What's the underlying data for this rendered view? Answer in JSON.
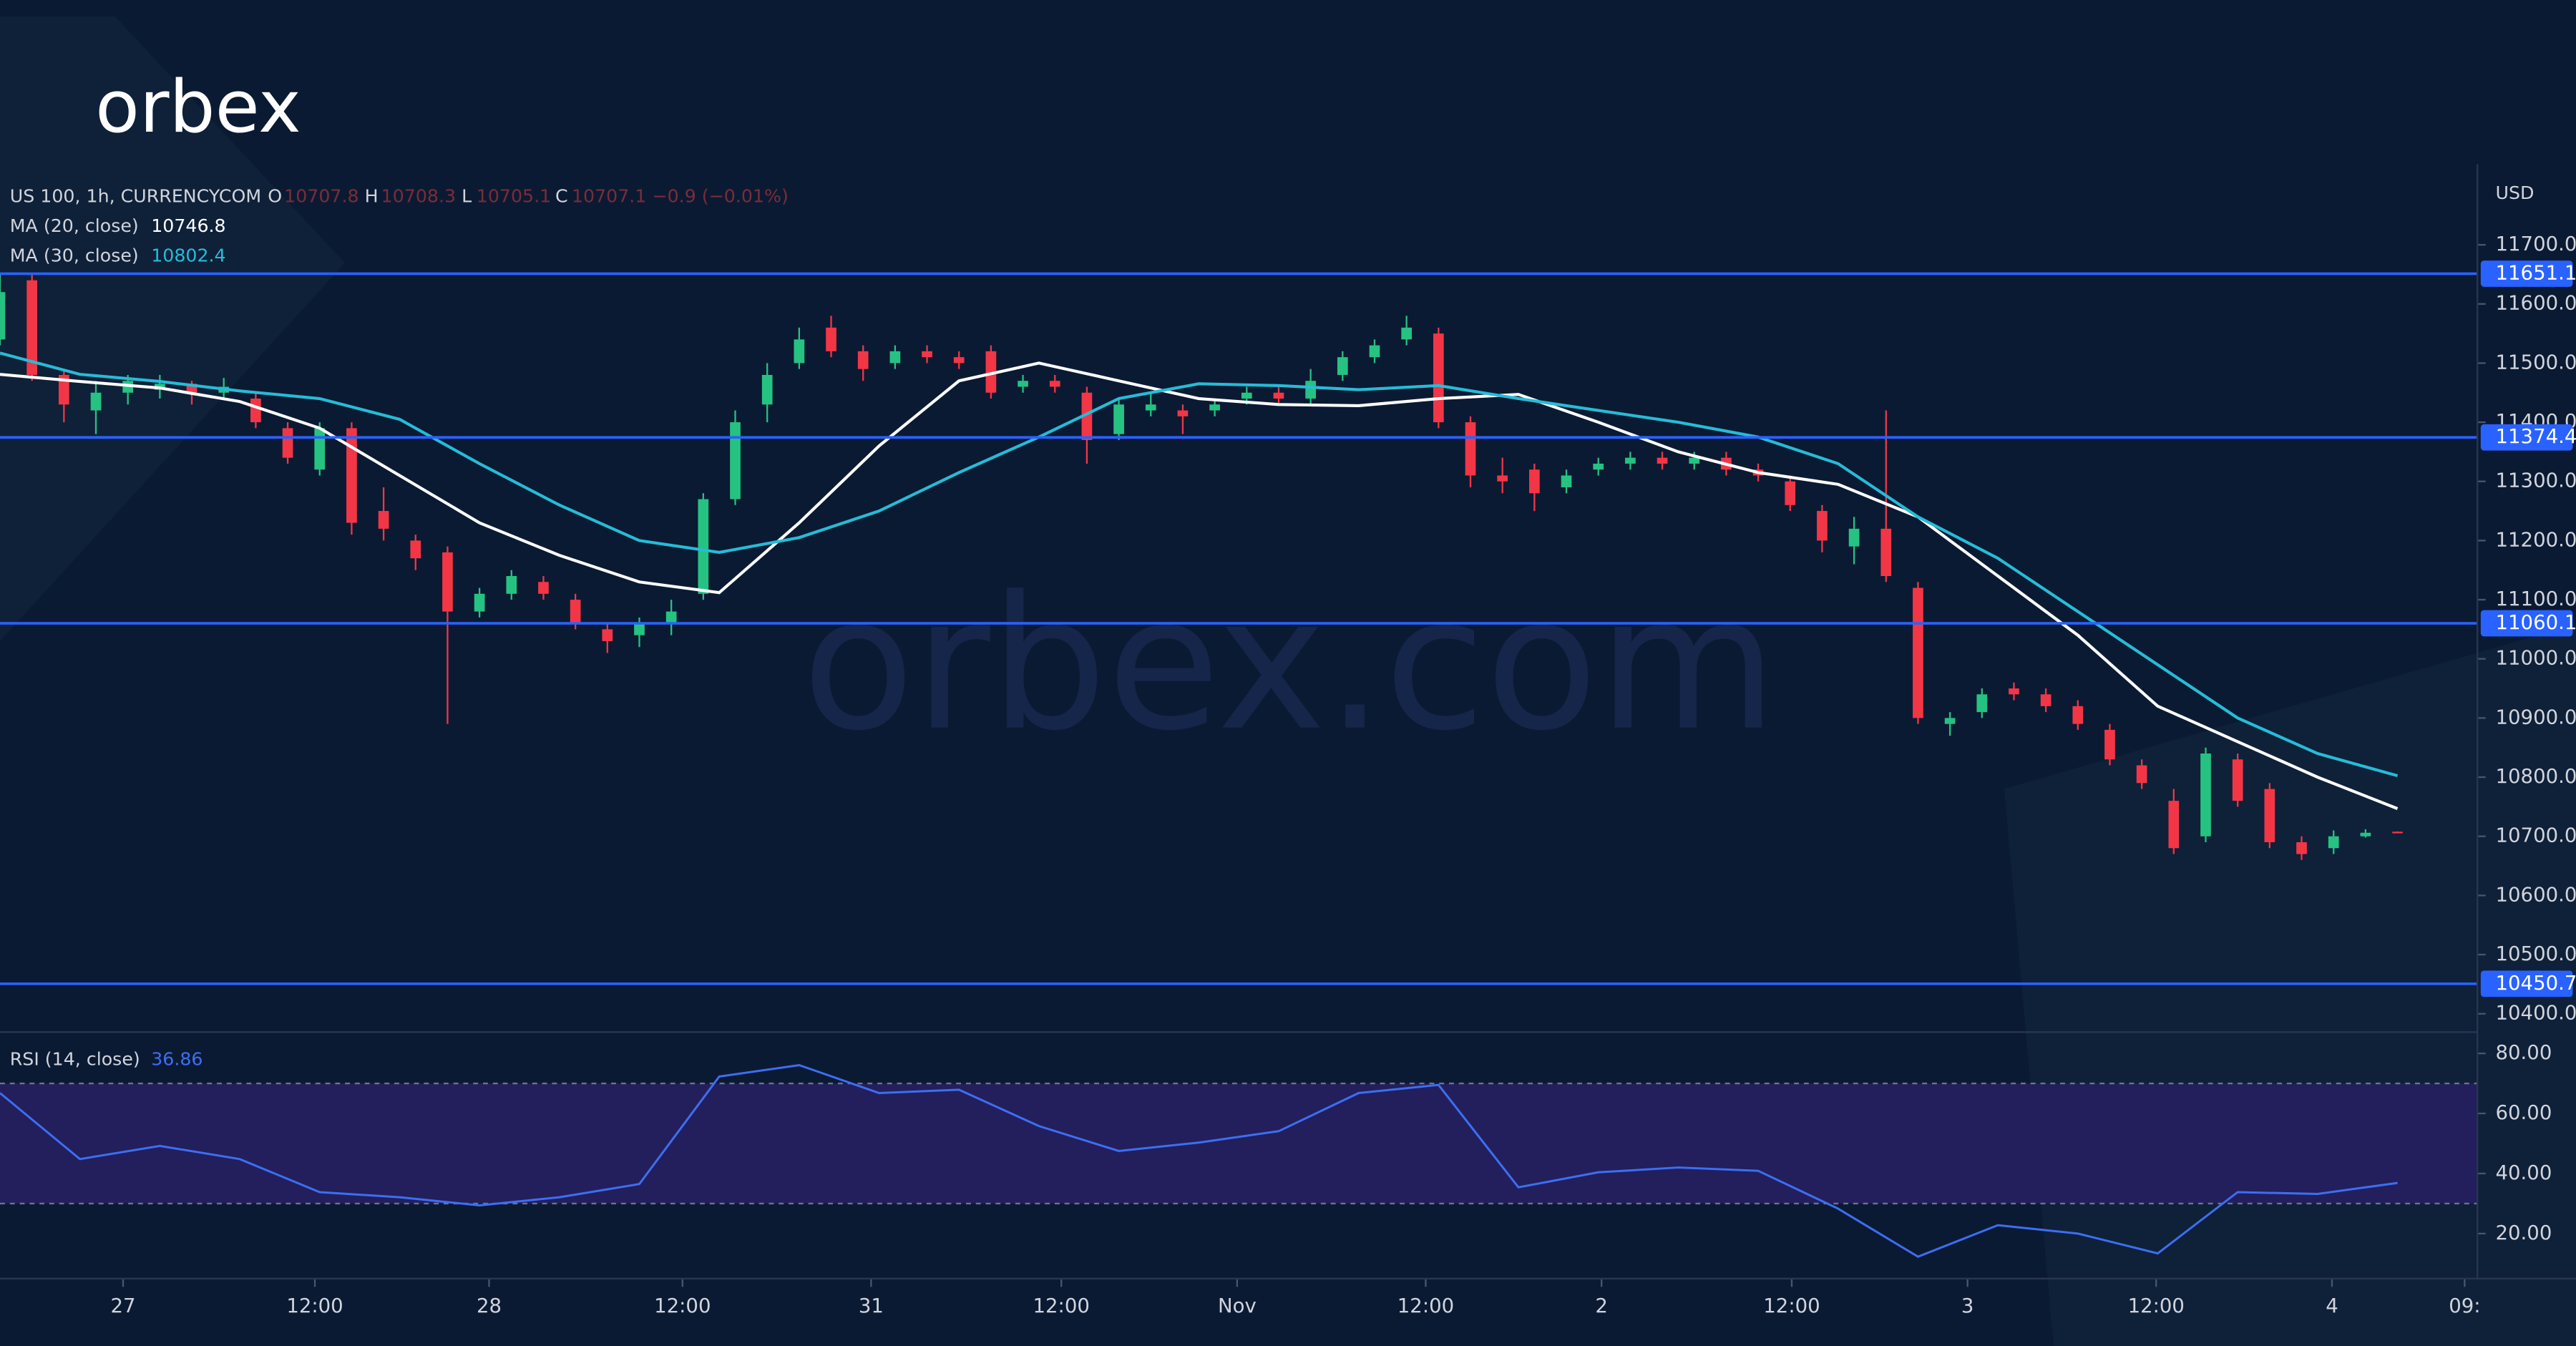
{
  "logo": "orbex",
  "watermark": "orbex.com",
  "chart_data": [
    {
      "type": "candlestick",
      "title": "US 100, 1h, CURRENCYCOM",
      "legend_fields": [
        "O",
        "H",
        "L",
        "C"
      ],
      "change": "−0.9 (−0.01%)",
      "y_unit": "USD",
      "up_color": "#26c281",
      "down_color": "#f23645",
      "x": [
        0,
        2,
        4,
        6,
        8,
        10,
        12,
        14,
        16,
        18,
        20,
        22,
        24,
        26,
        28,
        30,
        32,
        34,
        36,
        38,
        40,
        42,
        44,
        46,
        48,
        50,
        52,
        54,
        56,
        58,
        60,
        62,
        64,
        66,
        68,
        70,
        72,
        74,
        76,
        78,
        80,
        82,
        84,
        86,
        88,
        90,
        92,
        94,
        96,
        98,
        100,
        102,
        104,
        106,
        108,
        110,
        112,
        114,
        116,
        118,
        120,
        122,
        124,
        126,
        128,
        130,
        132,
        134,
        136,
        138,
        140,
        142,
        144,
        146,
        148,
        150
      ],
      "open": [
        11540,
        11640,
        11480,
        11420,
        11450,
        11455,
        11465,
        11450,
        11440,
        11390,
        11320,
        11390,
        11250,
        11200,
        11180,
        11080,
        11110,
        11130,
        11100,
        11050,
        11040,
        11060,
        11110,
        11270,
        11430,
        11500,
        11560,
        11520,
        11500,
        11520,
        11510,
        11520,
        11460,
        11470,
        11450,
        11380,
        11420,
        11420,
        11420,
        11440,
        11450,
        11440,
        11480,
        11510,
        11540,
        11550,
        11400,
        11310,
        11320,
        11290,
        11320,
        11330,
        11340,
        11330,
        11340,
        11320,
        11300,
        11250,
        11190,
        11220,
        11120,
        10890,
        10910,
        10950,
        10940,
        10920,
        10880,
        10820,
        10760,
        10700,
        10830,
        10780,
        10690,
        10680,
        10700,
        10707.8
      ],
      "high": [
        11651,
        11650,
        11490,
        11470,
        11480,
        11480,
        11470,
        11475,
        11450,
        11400,
        11400,
        11400,
        11290,
        11210,
        11190,
        11120,
        11150,
        11140,
        11110,
        11060,
        11070,
        11100,
        11280,
        11420,
        11500,
        11560,
        11580,
        11530,
        11530,
        11530,
        11520,
        11530,
        11480,
        11480,
        11460,
        11440,
        11450,
        11430,
        11440,
        11460,
        11460,
        11490,
        11520,
        11540,
        11580,
        11560,
        11410,
        11340,
        11330,
        11320,
        11340,
        11350,
        11350,
        11350,
        11350,
        11330,
        11310,
        11260,
        11240,
        11420,
        11130,
        10910,
        10950,
        10960,
        10950,
        10930,
        10890,
        10830,
        10780,
        10850,
        10840,
        10790,
        10700,
        10710,
        10712,
        10708.3
      ],
      "low": [
        11530,
        11470,
        11400,
        11380,
        11430,
        11440,
        11430,
        11440,
        11390,
        11330,
        11310,
        11210,
        11200,
        11150,
        10890,
        11070,
        11100,
        11100,
        11050,
        11010,
        11020,
        11040,
        11100,
        11260,
        11400,
        11490,
        11510,
        11470,
        11490,
        11500,
        11490,
        11440,
        11450,
        11450,
        11330,
        11370,
        11410,
        11380,
        11410,
        11430,
        11430,
        11430,
        11470,
        11500,
        11530,
        11390,
        11290,
        11280,
        11250,
        11280,
        11310,
        11320,
        11320,
        11320,
        11310,
        11300,
        11250,
        11180,
        11160,
        11130,
        10890,
        10870,
        10900,
        10930,
        10910,
        10880,
        10820,
        10780,
        10670,
        10690,
        10750,
        10680,
        10660,
        10670,
        10698,
        10705.1
      ],
      "close": [
        11620,
        11480,
        11430,
        11450,
        11470,
        11465,
        11450,
        11460,
        11400,
        11340,
        11390,
        11230,
        11220,
        11170,
        11080,
        11110,
        11140,
        11110,
        11060,
        11030,
        11060,
        11080,
        11270,
        11400,
        11480,
        11540,
        11520,
        11490,
        11520,
        11510,
        11500,
        11450,
        11470,
        11460,
        11370,
        11430,
        11430,
        11410,
        11430,
        11450,
        11440,
        11470,
        11510,
        11530,
        11560,
        11400,
        11310,
        11300,
        11280,
        11310,
        11330,
        11340,
        11330,
        11340,
        11320,
        11310,
        11260,
        11200,
        11220,
        11140,
        10900,
        10900,
        10940,
        10940,
        10920,
        10890,
        10830,
        10790,
        10680,
        10840,
        10760,
        10690,
        10670,
        10700,
        10706,
        10707.1
      ],
      "series": [
        {
          "name": "MA (20, close)",
          "color": "#ffffff",
          "x": [
            0,
            5,
            10,
            15,
            20,
            25,
            30,
            35,
            40,
            45,
            50,
            55,
            60,
            65,
            70,
            75,
            80,
            85,
            90,
            95,
            100,
            105,
            110,
            115,
            120,
            125,
            130,
            135,
            140,
            145,
            150
          ],
          "values": [
            11481,
            11469,
            11458,
            11435,
            11390,
            11310,
            11230,
            11175,
            11130,
            11112,
            11230,
            11360,
            11470,
            11500,
            11470,
            11440,
            11430,
            11428,
            11440,
            11447,
            11400,
            11350,
            11315,
            11295,
            11240,
            11140,
            11040,
            10920,
            10860,
            10800,
            10746.8
          ]
        },
        {
          "name": "MA (30, close)",
          "color": "#26bcd7",
          "x": [
            0,
            5,
            10,
            15,
            20,
            25,
            30,
            35,
            40,
            45,
            50,
            55,
            60,
            65,
            70,
            75,
            80,
            85,
            90,
            95,
            100,
            105,
            110,
            115,
            120,
            125,
            130,
            135,
            140,
            145,
            150
          ],
          "values": [
            11517,
            11481,
            11469,
            11453,
            11440,
            11405,
            11330,
            11260,
            11200,
            11180,
            11205,
            11250,
            11315,
            11375,
            11440,
            11465,
            11462,
            11455,
            11462,
            11440,
            11420,
            11400,
            11375,
            11330,
            11240,
            11170,
            11080,
            10990,
            10900,
            10840,
            10802.4
          ]
        }
      ],
      "levels": [
        11651.1,
        11374.4,
        11060.1,
        10450.7
      ],
      "level_color": "#2962ff",
      "xlim": [
        0,
        155
      ],
      "ylim": [
        10369,
        11836
      ],
      "yticks": [
        {
          "value": 10400,
          "label": "10400.0"
        },
        {
          "value": 10500,
          "label": "10500.0"
        },
        {
          "value": 10600,
          "label": "10600.0"
        },
        {
          "value": 10700,
          "label": "10700.0"
        },
        {
          "value": 10800,
          "label": "10800.0"
        },
        {
          "value": 10900,
          "label": "10900.0"
        },
        {
          "value": 11000,
          "label": "11000.0"
        },
        {
          "value": 11100,
          "label": "11100.0"
        },
        {
          "value": 11200,
          "label": "11200.0"
        },
        {
          "value": 11300,
          "label": "11300.0"
        },
        {
          "value": 11400,
          "label": "11400.0"
        },
        {
          "value": 11500,
          "label": "11500.0"
        },
        {
          "value": 11600,
          "label": "11600.0"
        },
        {
          "value": 11700,
          "label": "11700.0"
        }
      ],
      "xticks": [
        {
          "value": 7.7,
          "label": "27"
        },
        {
          "value": 19.7,
          "label": "12:00"
        },
        {
          "value": 30.6,
          "label": "28"
        },
        {
          "value": 42.7,
          "label": "12:00"
        },
        {
          "value": 54.5,
          "label": "31"
        },
        {
          "value": 66.4,
          "label": "12:00"
        },
        {
          "value": 77.4,
          "label": "Nov"
        },
        {
          "value": 89.2,
          "label": "12:00"
        },
        {
          "value": 100.2,
          "label": "2"
        },
        {
          "value": 112.1,
          "label": "12:00"
        },
        {
          "value": 123.1,
          "label": "3"
        },
        {
          "value": 134.9,
          "label": "12:00"
        },
        {
          "value": 145.9,
          "label": "4"
        },
        {
          "value": 154.2,
          "label": "09:"
        }
      ]
    },
    {
      "type": "line",
      "x": [
        0,
        5,
        10,
        15,
        20,
        25,
        30,
        35,
        40,
        45,
        50,
        55,
        60,
        65,
        70,
        75,
        80,
        85,
        90,
        95,
        100,
        105,
        110,
        115,
        120,
        125,
        130,
        135,
        140,
        145,
        150
      ],
      "series": [
        {
          "name": "RSI (14, close)",
          "color": "#3d6ef2",
          "values": [
            66.8,
            44.8,
            49.2,
            44.8,
            33.8,
            32.1,
            29.4,
            32.1,
            36.5,
            72.3,
            76.1,
            66.8,
            67.9,
            55.8,
            47.5,
            50.3,
            54.1,
            66.8,
            69.5,
            35.4,
            40.4,
            42.0,
            40.9,
            28.3,
            12.3,
            22.8,
            20.0,
            13.4,
            33.8,
            33.2,
            36.86
          ]
        }
      ],
      "bands": [
        30,
        70
      ],
      "band_fill": "#221f5c",
      "ylim": [
        5,
        86
      ],
      "yticks": [
        {
          "value": 20,
          "label": "20.00"
        },
        {
          "value": 40,
          "label": "40.00"
        },
        {
          "value": 60,
          "label": "60.00"
        },
        {
          "value": 80,
          "label": "80.00"
        }
      ]
    }
  ]
}
